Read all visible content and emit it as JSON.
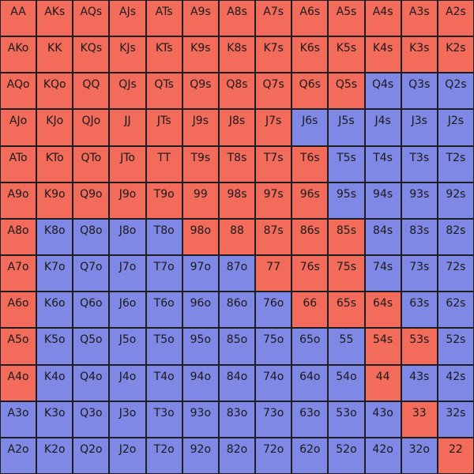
{
  "colors": {
    "raise": "#f26b5b",
    "fold": "#8088e6"
  },
  "legend_action_codes": {
    "r": "raise",
    "f": "fold"
  },
  "grid": {
    "rows": [
      {
        "hands": [
          "AA",
          "AKs",
          "AQs",
          "AJs",
          "ATs",
          "A9s",
          "A8s",
          "A7s",
          "A6s",
          "A5s",
          "A4s",
          "A3s",
          "A2s"
        ],
        "actions": "rrrrrrrrrrrrr"
      },
      {
        "hands": [
          "AKo",
          "KK",
          "KQs",
          "KJs",
          "KTs",
          "K9s",
          "K8s",
          "K7s",
          "K6s",
          "K5s",
          "K4s",
          "K3s",
          "K2s"
        ],
        "actions": "rrrrrrrrrrrrr"
      },
      {
        "hands": [
          "AQo",
          "KQo",
          "QQ",
          "QJs",
          "QTs",
          "Q9s",
          "Q8s",
          "Q7s",
          "Q6s",
          "Q5s",
          "Q4s",
          "Q3s",
          "Q2s"
        ],
        "actions": "rrrrrrrrrrfff"
      },
      {
        "hands": [
          "AJo",
          "KJo",
          "QJo",
          "JJ",
          "JTs",
          "J9s",
          "J8s",
          "J7s",
          "J6s",
          "J5s",
          "J4s",
          "J3s",
          "J2s"
        ],
        "actions": "rrrrrrrrfffff"
      },
      {
        "hands": [
          "ATo",
          "KTo",
          "QTo",
          "JTo",
          "TT",
          "T9s",
          "T8s",
          "T7s",
          "T6s",
          "T5s",
          "T4s",
          "T3s",
          "T2s"
        ],
        "actions": "rrrrrrrrrffff"
      },
      {
        "hands": [
          "A9o",
          "K9o",
          "Q9o",
          "J9o",
          "T9o",
          "99",
          "98s",
          "97s",
          "96s",
          "95s",
          "94s",
          "93s",
          "92s"
        ],
        "actions": "rrrrrrrrrffff"
      },
      {
        "hands": [
          "A8o",
          "K8o",
          "Q8o",
          "J8o",
          "T8o",
          "98o",
          "88",
          "87s",
          "86s",
          "85s",
          "84s",
          "83s",
          "82s"
        ],
        "actions": "rffffrrrrrfff"
      },
      {
        "hands": [
          "A7o",
          "K7o",
          "Q7o",
          "J7o",
          "T7o",
          "97o",
          "87o",
          "77",
          "76s",
          "75s",
          "74s",
          "73s",
          "72s"
        ],
        "actions": "rffffffrrrfff"
      },
      {
        "hands": [
          "A6o",
          "K6o",
          "Q6o",
          "J6o",
          "T6o",
          "96o",
          "86o",
          "76o",
          "66",
          "65s",
          "64s",
          "63s",
          "62s"
        ],
        "actions": "rfffffffrrrff"
      },
      {
        "hands": [
          "A5o",
          "K5o",
          "Q5o",
          "J5o",
          "T5o",
          "95o",
          "85o",
          "75o",
          "65o",
          "55",
          "54s",
          "53s",
          "52s"
        ],
        "actions": "rfffffffffrrf"
      },
      {
        "hands": [
          "A4o",
          "K4o",
          "Q4o",
          "J4o",
          "T4o",
          "94o",
          "84o",
          "74o",
          "64o",
          "54o",
          "44",
          "43s",
          "42s"
        ],
        "actions": "rfffffffffrff"
      },
      {
        "hands": [
          "A3o",
          "K3o",
          "Q3o",
          "J3o",
          "T3o",
          "93o",
          "83o",
          "73o",
          "63o",
          "53o",
          "43o",
          "33",
          "32s"
        ],
        "actions": "fffffffffffrf"
      },
      {
        "hands": [
          "A2o",
          "K2o",
          "Q2o",
          "J2o",
          "T2o",
          "92o",
          "82o",
          "72o",
          "62o",
          "52o",
          "42o",
          "32o",
          "22"
        ],
        "actions": "ffffffffffffr"
      }
    ]
  }
}
